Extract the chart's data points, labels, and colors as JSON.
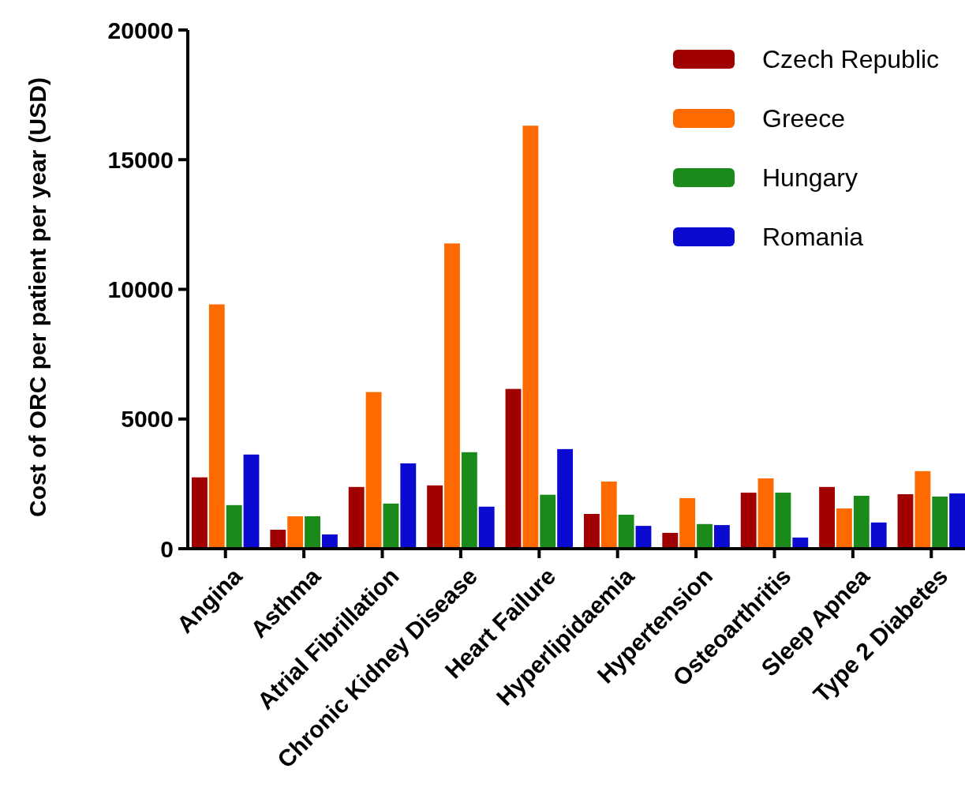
{
  "chart_data": {
    "type": "bar",
    "ylabel": "Cost of ORC per patient per year (USD)",
    "categories": [
      "Angina",
      "Asthma",
      "Atrial Fibrillation",
      "Chronic Kidney Disease",
      "Heart Failure",
      "Hyperlipidaemia",
      "Hypertension",
      "Osteoarthritis",
      "Sleep Apnea",
      "Type 2 Diabetes"
    ],
    "series": [
      {
        "name": "Czech Republic",
        "color": "#a00000",
        "values": [
          2750,
          730,
          2380,
          2440,
          6160,
          1340,
          610,
          2160,
          2380,
          2100
        ]
      },
      {
        "name": "Greece",
        "color": "#ff6a00",
        "values": [
          9420,
          1250,
          6040,
          11770,
          16310,
          2590,
          1950,
          2710,
          1550,
          2990
        ]
      },
      {
        "name": "Hungary",
        "color": "#1a8a1a",
        "values": [
          1680,
          1250,
          1740,
          3720,
          2080,
          1310,
          950,
          2160,
          2040,
          2010
        ]
      },
      {
        "name": "Romania",
        "color": "#0a0ad0",
        "values": [
          3630,
          550,
          3290,
          1620,
          3840,
          880,
          910,
          430,
          1010,
          2130
        ]
      }
    ],
    "ylim": [
      0,
      20000
    ],
    "yticks": [
      0,
      5000,
      10000,
      15000,
      20000
    ],
    "legend": "top right"
  }
}
